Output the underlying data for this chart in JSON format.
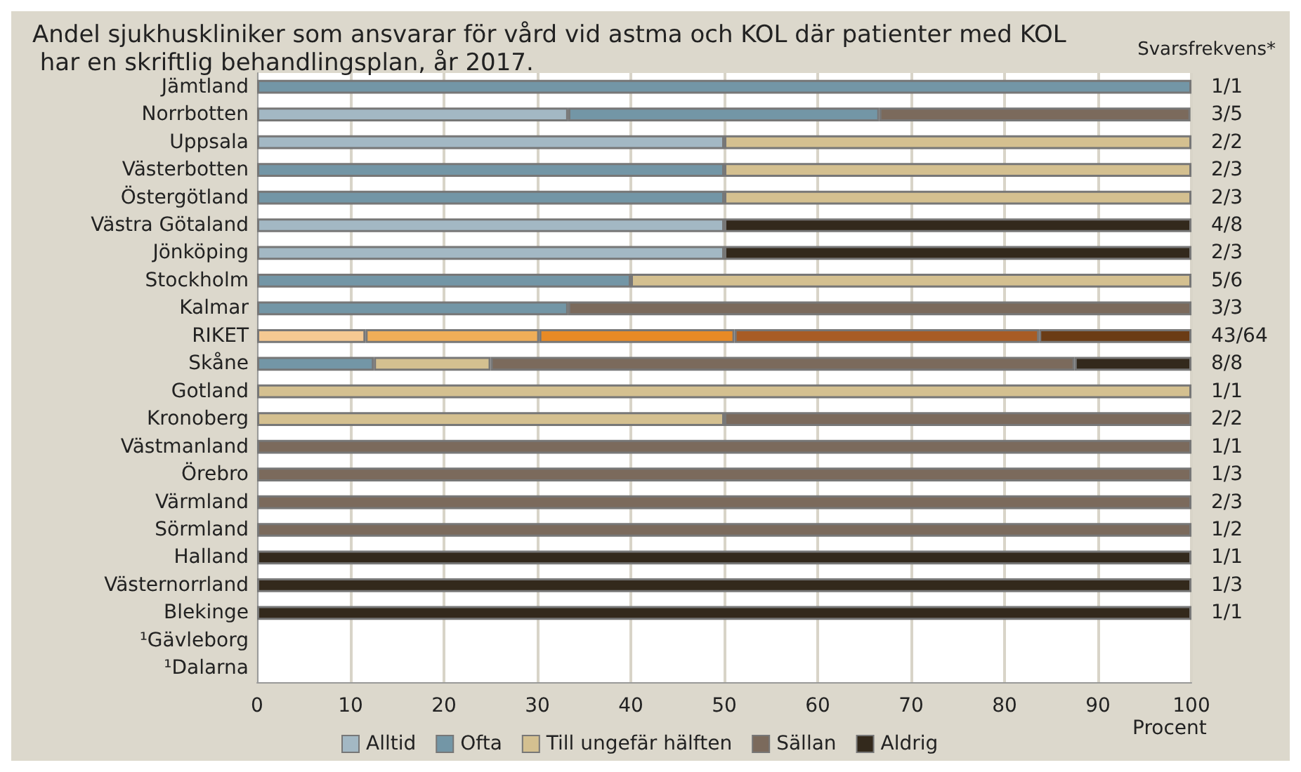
{
  "chart_data": {
    "type": "bar",
    "orientation": "horizontal",
    "stacked": true,
    "title": "Andel sjukhuskliniker som ansvarar för vård vid astma och KOL där patienter med KOL har en skriftlig behandlingsplan, år 2017.",
    "xlabel": "Procent",
    "categories": [
      "Jämtland",
      "Norrbotten",
      "Uppsala",
      "Västerbotten",
      "Östergötland",
      "Västra Götaland",
      "Jönköping",
      "Stockholm",
      "Kalmar",
      "RIKET",
      "Skåne",
      "Gotland",
      "Kronoberg",
      "Västmanland",
      "Örebro",
      "Värmland",
      "Sörmland",
      "Halland",
      "Västernorrland",
      "Blekinge",
      "¹Gävleborg",
      "¹Dalarna"
    ],
    "y2_categories": [
      "1/1",
      "3/5",
      "2/2",
      "2/3",
      "2/3",
      "4/8",
      "2/3",
      "5/6",
      "3/3",
      "43/64",
      "8/8",
      "1/1",
      "2/2",
      "1/1",
      "1/3",
      "2/3",
      "1/2",
      "1/1",
      "1/3",
      "1/1",
      null,
      null
    ],
    "y2label": "Svarsfrekvens*",
    "series": [
      {
        "name": "Alltid",
        "color": "#a3b8c4",
        "colors": [
          "#a3b8c4",
          "#a3b8c4",
          "#a3b8c4",
          "#a3b8c4",
          "#a3b8c4",
          "#a3b8c4",
          "#a3b8c4",
          "#a3b8c4",
          "#a3b8c4",
          "#f5c992",
          "#a3b8c4",
          "#a3b8c4",
          "#a3b8c4",
          "#a3b8c4",
          "#a3b8c4",
          "#a3b8c4",
          "#a3b8c4",
          "#a3b8c4",
          "#a3b8c4",
          "#a3b8c4",
          "#a3b8c4",
          "#a3b8c4"
        ],
        "values": [
          null,
          33.3,
          50,
          null,
          null,
          50,
          50,
          null,
          null,
          11.6,
          null,
          null,
          null,
          null,
          null,
          null,
          null,
          null,
          null,
          null,
          null,
          null
        ]
      },
      {
        "name": "Ofta",
        "color": "#7396a6",
        "colors": [
          "#7396a6",
          "#7396a6",
          "#7396a6",
          "#7396a6",
          "#7396a6",
          "#7396a6",
          "#7396a6",
          "#7396a6",
          "#7396a6",
          "#f0ae58",
          "#7396a6",
          "#7396a6",
          "#7396a6",
          "#7396a6",
          "#7396a6",
          "#7396a6",
          "#7396a6",
          "#7396a6",
          "#7396a6",
          "#7396a6",
          "#7396a6",
          "#7396a6"
        ],
        "values": [
          100,
          33.3,
          null,
          50,
          50,
          null,
          null,
          40,
          33.3,
          18.6,
          12.5,
          null,
          null,
          null,
          null,
          null,
          null,
          null,
          null,
          null,
          null,
          null
        ]
      },
      {
        "name": "Till ungefär hälften",
        "color": "#d4c090",
        "colors": [
          "#d4c090",
          "#d4c090",
          "#d4c090",
          "#d4c090",
          "#d4c090",
          "#d4c090",
          "#d4c090",
          "#d4c090",
          "#d4c090",
          "#e88a25",
          "#d4c090",
          "#d4c090",
          "#d4c090",
          "#d4c090",
          "#d4c090",
          "#d4c090",
          "#d4c090",
          "#d4c090",
          "#d4c090",
          "#d4c090",
          "#d4c090",
          "#d4c090"
        ],
        "values": [
          null,
          null,
          50,
          50,
          50,
          null,
          null,
          60,
          null,
          20.9,
          12.5,
          100,
          50,
          null,
          null,
          null,
          null,
          null,
          null,
          null,
          null,
          null
        ]
      },
      {
        "name": "Sällan",
        "color": "#7b6a5c",
        "colors": [
          "#7b6a5c",
          "#7b6a5c",
          "#7b6a5c",
          "#7b6a5c",
          "#7b6a5c",
          "#7b6a5c",
          "#7b6a5c",
          "#7b6a5c",
          "#7b6a5c",
          "#a85c25",
          "#7b6a5c",
          "#7b6a5c",
          "#7b6a5c",
          "#7b6a5c",
          "#7b6a5c",
          "#7b6a5c",
          "#7b6a5c",
          "#7b6a5c",
          "#7b6a5c",
          "#7b6a5c",
          "#7b6a5c",
          "#7b6a5c"
        ],
        "values": [
          null,
          33.3,
          null,
          null,
          null,
          null,
          null,
          null,
          66.7,
          32.6,
          62.5,
          null,
          50,
          100,
          100,
          100,
          100,
          null,
          null,
          null,
          null,
          null
        ]
      },
      {
        "name": "Aldrig",
        "color": "#33291c",
        "colors": [
          "#33291c",
          "#33291c",
          "#33291c",
          "#33291c",
          "#33291c",
          "#33291c",
          "#33291c",
          "#33291c",
          "#33291c",
          "#6b3c15",
          "#33291c",
          "#33291c",
          "#33291c",
          "#33291c",
          "#33291c",
          "#33291c",
          "#33291c",
          "#33291c",
          "#33291c",
          "#33291c",
          "#33291c",
          "#33291c"
        ],
        "values": [
          null,
          null,
          null,
          null,
          null,
          50,
          50,
          null,
          null,
          16.3,
          12.5,
          null,
          null,
          null,
          null,
          null,
          null,
          100,
          100,
          100,
          null,
          null
        ]
      }
    ],
    "xlim": [
      0,
      100
    ],
    "xticks": [
      0,
      10,
      20,
      30,
      40,
      50,
      60,
      70,
      80,
      90,
      100
    ],
    "grid": "x",
    "legend": "bottom"
  }
}
